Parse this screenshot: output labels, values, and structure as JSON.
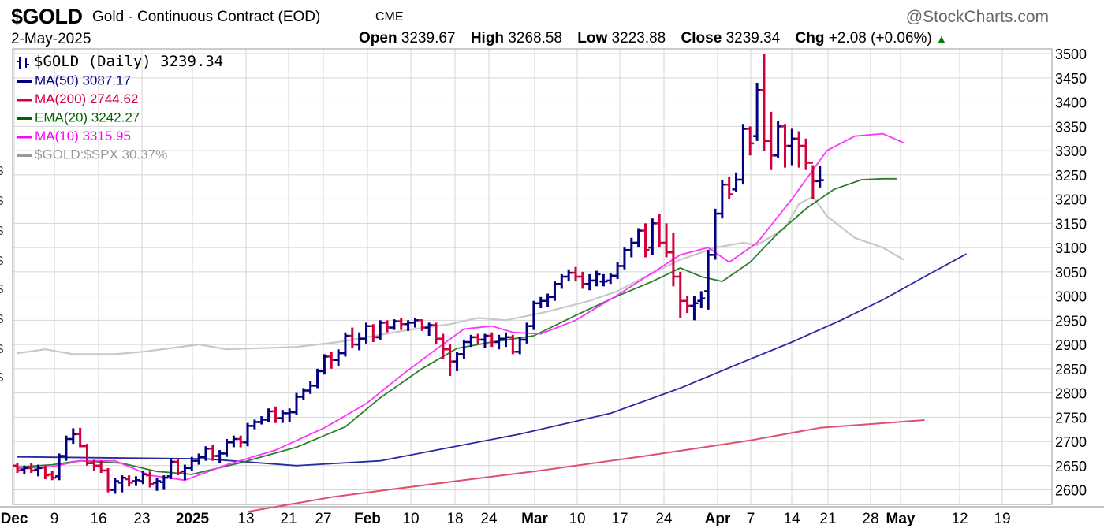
{
  "header": {
    "symbol": "$GOLD",
    "description": "Gold - Continuous Contract (EOD)",
    "exchange": "CME",
    "brand": "@StockCharts.com",
    "date": "2-May-2025",
    "open_label": "Open",
    "open": "3239.67",
    "high_label": "High",
    "high": "3268.58",
    "low_label": "Low",
    "low": "3223.88",
    "close_label": "Close",
    "close": "3239.34",
    "chg_label": "Chg",
    "chg": "+2.08 (+0.06%)"
  },
  "legend": [
    {
      "label": "$GOLD (Daily) 3239.34",
      "color": "#000080",
      "icon": "ohlc-bar-icon"
    },
    {
      "label": "MA(50) 3087.17",
      "color": "#000080",
      "icon": "line-swatch-icon"
    },
    {
      "label": "MA(200) 2744.62",
      "color": "#d0003c",
      "icon": "line-swatch-icon"
    },
    {
      "label": "EMA(20) 3242.27",
      "color": "#006400",
      "icon": "line-swatch-icon"
    },
    {
      "label": "MA(10) 3315.95",
      "color": "#ff00ff",
      "icon": "line-swatch-icon"
    },
    {
      "label": "$GOLD:$SPX 30.37%",
      "color": "#999999",
      "icon": "line-swatch-icon"
    }
  ],
  "colors": {
    "up": "#000080",
    "down": "#d0003c",
    "ma50": "#2a2aa0",
    "ma200": "#e0506e",
    "ema20": "#2e7d2e",
    "ma10": "#ff33ff",
    "ratio": "#c8c8c8",
    "grid": "#d4d4d4"
  },
  "chart_data": {
    "type": "ohlc",
    "ylim": [
      2570,
      3510
    ],
    "yticks": [
      2600,
      2650,
      2700,
      2750,
      2800,
      2850,
      2900,
      2950,
      3000,
      3050,
      3100,
      3150,
      3200,
      3250,
      3300,
      3350,
      3400,
      3450,
      3500
    ],
    "xticks": [
      "Dec",
      "9",
      "16",
      "23",
      "2025",
      "13",
      "21",
      "27",
      "Feb",
      "10",
      "18",
      "24",
      "Mar",
      "10",
      "17",
      "24",
      "Apr",
      "7",
      "14",
      "21",
      "28",
      "May",
      "12",
      "19"
    ],
    "bold_xticks": [
      "Dec",
      "2025",
      "Feb",
      "Mar",
      "Apr",
      "May"
    ],
    "bars": [
      [
        2650,
        2655,
        2635,
        2640
      ],
      [
        2642,
        2650,
        2632,
        2645
      ],
      [
        2645,
        2655,
        2635,
        2640
      ],
      [
        2642,
        2652,
        2628,
        2645
      ],
      [
        2646,
        2650,
        2622,
        2630
      ],
      [
        2632,
        2640,
        2620,
        2625
      ],
      [
        2628,
        2675,
        2620,
        2670
      ],
      [
        2670,
        2712,
        2660,
        2705
      ],
      [
        2705,
        2727,
        2695,
        2715
      ],
      [
        2715,
        2728,
        2688,
        2690
      ],
      [
        2690,
        2695,
        2650,
        2655
      ],
      [
        2655,
        2662,
        2640,
        2650
      ],
      [
        2650,
        2660,
        2635,
        2640
      ],
      [
        2640,
        2645,
        2595,
        2600
      ],
      [
        2600,
        2625,
        2592,
        2618
      ],
      [
        2615,
        2630,
        2595,
        2625
      ],
      [
        2622,
        2630,
        2607,
        2615
      ],
      [
        2618,
        2628,
        2608,
        2620
      ],
      [
        2618,
        2640,
        2612,
        2632
      ],
      [
        2630,
        2638,
        2605,
        2612
      ],
      [
        2615,
        2625,
        2598,
        2618
      ],
      [
        2616,
        2630,
        2600,
        2625
      ],
      [
        2628,
        2665,
        2622,
        2658
      ],
      [
        2658,
        2665,
        2630,
        2635
      ],
      [
        2638,
        2652,
        2620,
        2645
      ],
      [
        2645,
        2668,
        2640,
        2660
      ],
      [
        2660,
        2675,
        2652,
        2668
      ],
      [
        2668,
        2690,
        2660,
        2685
      ],
      [
        2685,
        2692,
        2660,
        2670
      ],
      [
        2670,
        2682,
        2655,
        2675
      ],
      [
        2675,
        2705,
        2668,
        2698
      ],
      [
        2698,
        2712,
        2688,
        2705
      ],
      [
        2705,
        2712,
        2688,
        2698
      ],
      [
        2698,
        2738,
        2690,
        2732
      ],
      [
        2732,
        2745,
        2725,
        2740
      ],
      [
        2740,
        2752,
        2735,
        2745
      ],
      [
        2745,
        2768,
        2740,
        2762
      ],
      [
        2762,
        2772,
        2738,
        2748
      ],
      [
        2748,
        2765,
        2738,
        2758
      ],
      [
        2758,
        2768,
        2740,
        2760
      ],
      [
        2760,
        2800,
        2755,
        2792
      ],
      [
        2792,
        2810,
        2785,
        2805
      ],
      [
        2805,
        2825,
        2798,
        2815
      ],
      [
        2815,
        2850,
        2810,
        2845
      ],
      [
        2845,
        2880,
        2838,
        2875
      ],
      [
        2875,
        2885,
        2850,
        2868
      ],
      [
        2868,
        2890,
        2855,
        2882
      ],
      [
        2882,
        2925,
        2875,
        2918
      ],
      [
        2918,
        2935,
        2892,
        2900
      ],
      [
        2900,
        2925,
        2888,
        2912
      ],
      [
        2912,
        2945,
        2902,
        2938
      ],
      [
        2938,
        2942,
        2905,
        2915
      ],
      [
        2915,
        2950,
        2910,
        2945
      ],
      [
        2945,
        2950,
        2925,
        2935
      ],
      [
        2935,
        2952,
        2930,
        2948
      ],
      [
        2948,
        2955,
        2930,
        2942
      ],
      [
        2942,
        2950,
        2928,
        2945
      ],
      [
        2945,
        2955,
        2935,
        2950
      ],
      [
        2950,
        2952,
        2928,
        2935
      ],
      [
        2935,
        2945,
        2918,
        2940
      ],
      [
        2940,
        2945,
        2900,
        2912
      ],
      [
        2912,
        2922,
        2870,
        2890
      ],
      [
        2890,
        2900,
        2835,
        2865
      ],
      [
        2865,
        2885,
        2845,
        2880
      ],
      [
        2880,
        2910,
        2870,
        2905
      ],
      [
        2905,
        2920,
        2895,
        2915
      ],
      [
        2915,
        2922,
        2900,
        2910
      ],
      [
        2910,
        2922,
        2892,
        2918
      ],
      [
        2918,
        2925,
        2895,
        2905
      ],
      [
        2905,
        2920,
        2890,
        2912
      ],
      [
        2912,
        2925,
        2895,
        2915
      ],
      [
        2915,
        2920,
        2880,
        2885
      ],
      [
        2885,
        2915,
        2880,
        2910
      ],
      [
        2910,
        2945,
        2902,
        2938
      ],
      [
        2938,
        2990,
        2930,
        2985
      ],
      [
        2985,
        2998,
        2975,
        2990
      ],
      [
        2990,
        3005,
        2978,
        2998
      ],
      [
        2998,
        3030,
        2990,
        3025
      ],
      [
        3025,
        3045,
        3015,
        3040
      ],
      [
        3040,
        3055,
        3030,
        3048
      ],
      [
        3048,
        3060,
        3030,
        3040
      ],
      [
        3040,
        3050,
        3015,
        3025
      ],
      [
        3025,
        3045,
        3012,
        3032
      ],
      [
        3032,
        3052,
        3020,
        3045
      ],
      [
        3030,
        3045,
        3020,
        3030
      ],
      [
        3032,
        3048,
        3025,
        3042
      ],
      [
        3042,
        3070,
        3035,
        3062
      ],
      [
        3062,
        3100,
        3055,
        3095
      ],
      [
        3095,
        3120,
        3080,
        3110
      ],
      [
        3110,
        3140,
        3100,
        3135
      ],
      [
        3135,
        3150,
        3080,
        3095
      ],
      [
        3100,
        3160,
        3085,
        3150
      ],
      [
        3150,
        3170,
        3100,
        3110
      ],
      [
        3110,
        3150,
        3080,
        3090
      ],
      [
        3090,
        3130,
        3020,
        3040
      ],
      [
        3040,
        3050,
        2955,
        2990
      ],
      [
        2990,
        3000,
        2965,
        2980
      ],
      [
        2980,
        3000,
        2950,
        2985
      ],
      [
        2990,
        3010,
        2975,
        2995
      ],
      [
        3010,
        3095,
        2972,
        3085
      ],
      [
        3085,
        3180,
        3075,
        3170
      ],
      [
        3170,
        3240,
        3160,
        3230
      ],
      [
        3230,
        3245,
        3200,
        3210
      ],
      [
        3220,
        3255,
        3215,
        3240
      ],
      [
        3240,
        3355,
        3230,
        3345
      ],
      [
        3345,
        3350,
        3290,
        3315
      ],
      [
        3330,
        3440,
        3320,
        3425
      ],
      [
        3425,
        3500,
        3300,
        3320
      ],
      [
        3320,
        3380,
        3260,
        3290
      ],
      [
        3290,
        3362,
        3285,
        3350
      ],
      [
        3350,
        3355,
        3265,
        3310
      ],
      [
        3310,
        3345,
        3270,
        3325
      ],
      [
        3325,
        3340,
        3265,
        3310
      ],
      [
        3310,
        3325,
        3260,
        3275
      ],
      [
        3275,
        3270,
        3200,
        3237
      ],
      [
        3237,
        3268,
        3224,
        3239
      ]
    ],
    "ma50": [
      [
        0,
        2668
      ],
      [
        27,
        2664
      ],
      [
        40,
        2650
      ],
      [
        52,
        2660
      ],
      [
        60,
        2682
      ],
      [
        72,
        2715
      ],
      [
        85,
        2758
      ],
      [
        95,
        2810
      ],
      [
        103,
        2858
      ],
      [
        111,
        2905
      ],
      [
        118,
        2950
      ],
      [
        124,
        2992
      ],
      [
        130,
        3040
      ],
      [
        136,
        3087
      ]
    ],
    "ma200": [
      [
        33,
        2555
      ],
      [
        45,
        2585
      ],
      [
        60,
        2613
      ],
      [
        75,
        2640
      ],
      [
        90,
        2670
      ],
      [
        105,
        2702
      ],
      [
        115,
        2728
      ],
      [
        130,
        2744
      ]
    ],
    "ema20": [
      [
        0,
        2647
      ],
      [
        5,
        2652
      ],
      [
        9,
        2660
      ],
      [
        15,
        2655
      ],
      [
        20,
        2638
      ],
      [
        25,
        2632
      ],
      [
        32,
        2656
      ],
      [
        40,
        2688
      ],
      [
        47,
        2730
      ],
      [
        52,
        2790
      ],
      [
        58,
        2850
      ],
      [
        63,
        2892
      ],
      [
        68,
        2905
      ],
      [
        74,
        2918
      ],
      [
        80,
        2960
      ],
      [
        86,
        3000
      ],
      [
        91,
        3030
      ],
      [
        95,
        3058
      ],
      [
        98,
        3040
      ],
      [
        101,
        3030
      ],
      [
        105,
        3070
      ],
      [
        109,
        3130
      ],
      [
        113,
        3180
      ],
      [
        117,
        3220
      ],
      [
        121,
        3240
      ],
      [
        124,
        3242
      ],
      [
        126,
        3242
      ]
    ],
    "ma10": [
      [
        0,
        2644
      ],
      [
        5,
        2648
      ],
      [
        9,
        2660
      ],
      [
        14,
        2660
      ],
      [
        19,
        2630
      ],
      [
        24,
        2620
      ],
      [
        30,
        2652
      ],
      [
        37,
        2682
      ],
      [
        44,
        2728
      ],
      [
        50,
        2778
      ],
      [
        55,
        2836
      ],
      [
        60,
        2890
      ],
      [
        64,
        2932
      ],
      [
        68,
        2938
      ],
      [
        71,
        2925
      ],
      [
        75,
        2922
      ],
      [
        80,
        2950
      ],
      [
        86,
        3002
      ],
      [
        91,
        3048
      ],
      [
        95,
        3085
      ],
      [
        99,
        3100
      ],
      [
        102,
        3070
      ],
      [
        106,
        3110
      ],
      [
        111,
        3200
      ],
      [
        116,
        3300
      ],
      [
        120,
        3330
      ],
      [
        124,
        3335
      ],
      [
        127,
        3316
      ]
    ],
    "ratio": [
      [
        0,
        2882
      ],
      [
        4,
        2890
      ],
      [
        8,
        2880
      ],
      [
        14,
        2880
      ],
      [
        18,
        2885
      ],
      [
        26,
        2900
      ],
      [
        30,
        2890
      ],
      [
        40,
        2895
      ],
      [
        46,
        2905
      ],
      [
        50,
        2915
      ],
      [
        56,
        2930
      ],
      [
        62,
        2942
      ],
      [
        66,
        2955
      ],
      [
        70,
        2950
      ],
      [
        76,
        2968
      ],
      [
        82,
        2990
      ],
      [
        86,
        3010
      ],
      [
        90,
        3040
      ],
      [
        95,
        3075
      ],
      [
        100,
        3100
      ],
      [
        104,
        3110
      ],
      [
        106,
        3105
      ],
      [
        110,
        3140
      ],
      [
        112,
        3190
      ],
      [
        114,
        3205
      ],
      [
        116,
        3165
      ],
      [
        120,
        3120
      ],
      [
        124,
        3100
      ],
      [
        127,
        3075
      ]
    ]
  }
}
